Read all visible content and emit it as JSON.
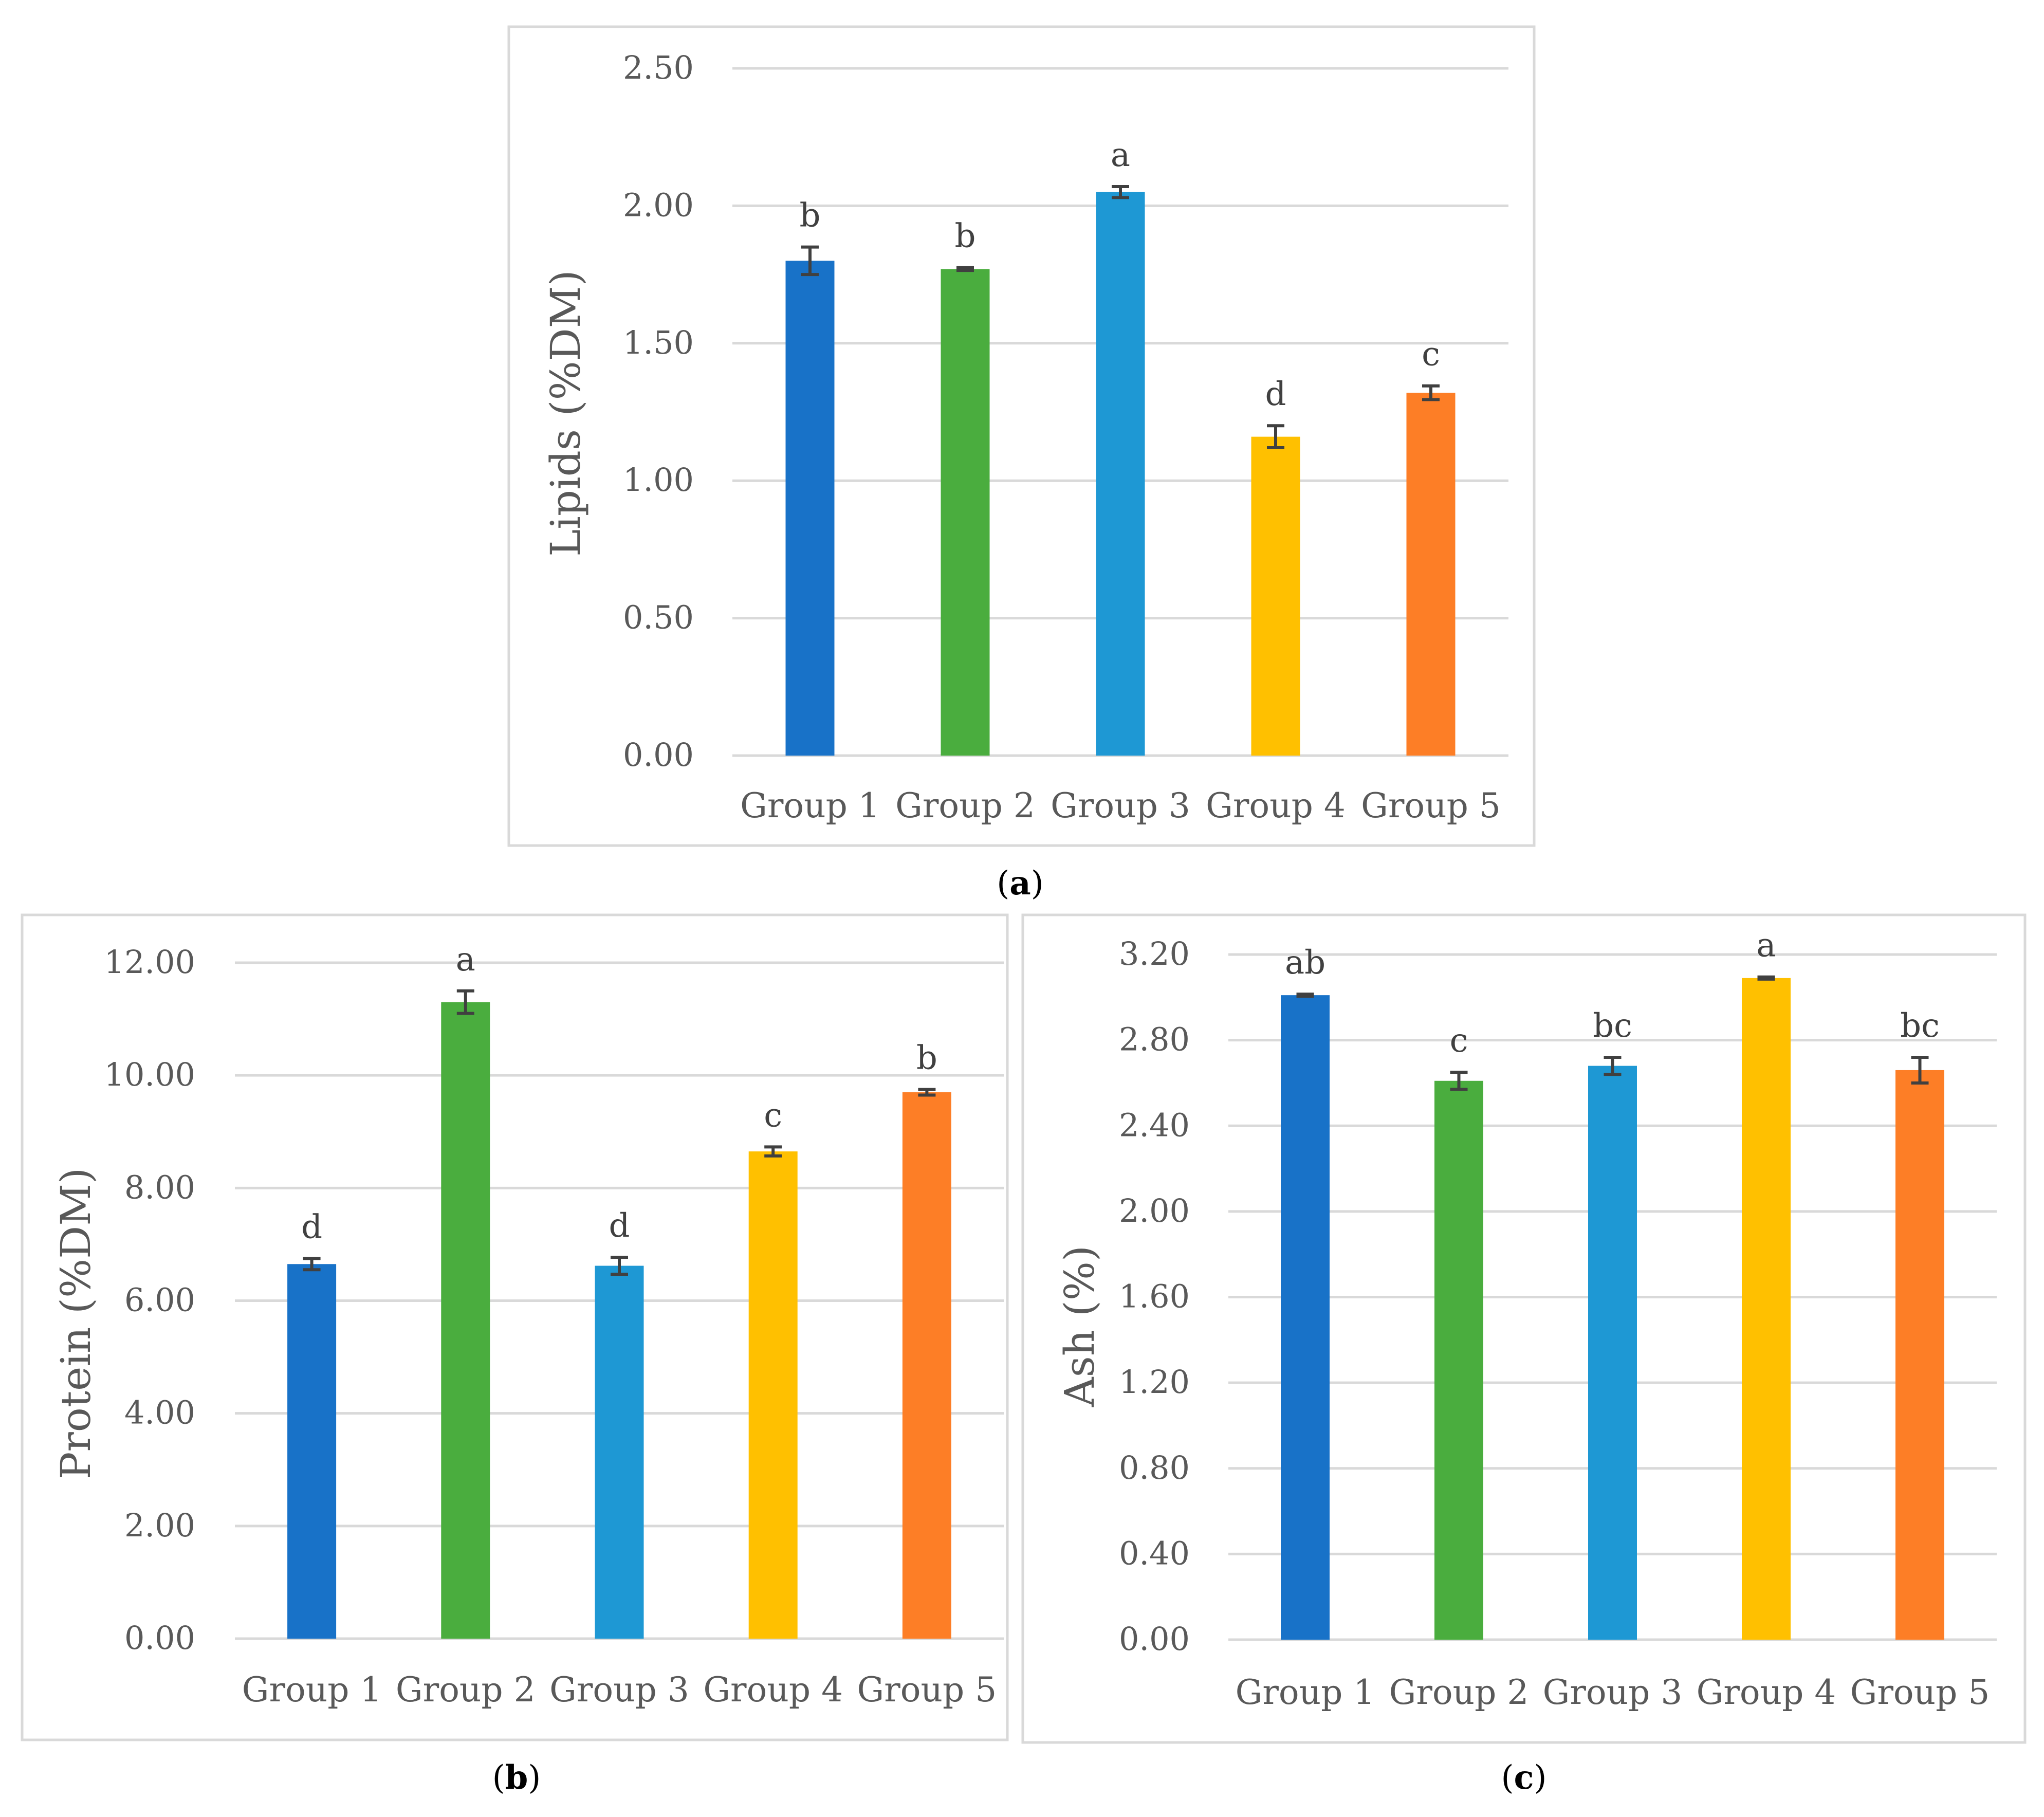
{
  "chart_data": [
    {
      "id": "a",
      "type": "bar",
      "caption_letter": "a",
      "categories": [
        "Group 1",
        "Group 2",
        "Group 3",
        "Group 4",
        "Group 5"
      ],
      "values": [
        1.8,
        1.77,
        2.05,
        1.16,
        1.32
      ],
      "errors": [
        0.05,
        0.005,
        0.02,
        0.04,
        0.025
      ],
      "letters": [
        "b",
        "b",
        "a",
        "d",
        "c"
      ],
      "colors": [
        "#1872c8",
        "#4aad3e",
        "#1e98d4",
        "#ffc000",
        "#fd7e26"
      ],
      "ylabel": "Lipids (%DM)",
      "ylim": [
        0,
        2.5
      ],
      "yticks": [
        "0.00",
        "0.50",
        "1.00",
        "1.50",
        "2.00",
        "2.50"
      ],
      "grid": true
    },
    {
      "id": "b",
      "type": "bar",
      "caption_letter": "b",
      "categories": [
        "Group 1",
        "Group 2",
        "Group 3",
        "Group 4",
        "Group 5"
      ],
      "values": [
        6.65,
        11.3,
        6.62,
        8.65,
        9.7
      ],
      "errors": [
        0.1,
        0.2,
        0.15,
        0.08,
        0.05
      ],
      "letters": [
        "d",
        "a",
        "d",
        "c",
        "b"
      ],
      "colors": [
        "#1872c8",
        "#4aad3e",
        "#1e98d4",
        "#ffc000",
        "#fd7e26"
      ],
      "ylabel": "Protein (%DM)",
      "ylim": [
        0,
        12
      ],
      "yticks": [
        "0.00",
        "2.00",
        "4.00",
        "6.00",
        "8.00",
        "10.00",
        "12.00"
      ],
      "grid": true
    },
    {
      "id": "c",
      "type": "bar",
      "caption_letter": "c",
      "categories": [
        "Group 1",
        "Group 2",
        "Group 3",
        "Group 4",
        "Group 5"
      ],
      "values": [
        3.01,
        2.61,
        2.68,
        3.09,
        2.66
      ],
      "errors": [
        0.005,
        0.04,
        0.04,
        0.005,
        0.06
      ],
      "letters": [
        "ab",
        "c",
        "bc",
        "a",
        "bc"
      ],
      "colors": [
        "#1872c8",
        "#4aad3e",
        "#1e98d4",
        "#ffc000",
        "#fd7e26"
      ],
      "ylabel": "Ash (%)",
      "ylim": [
        0,
        3.2
      ],
      "yticks": [
        "0.00",
        "0.40",
        "0.80",
        "1.20",
        "1.60",
        "2.00",
        "2.40",
        "2.80",
        "3.20"
      ],
      "grid": true
    }
  ]
}
